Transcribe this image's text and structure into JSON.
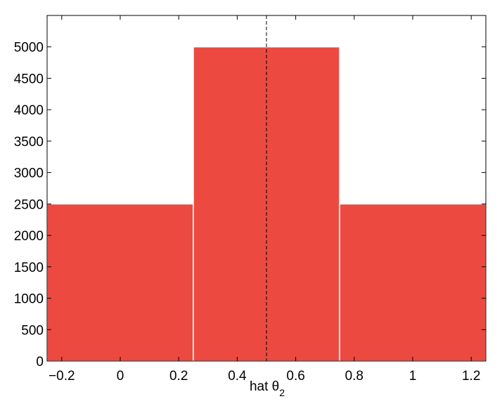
{
  "chart_data": {
    "type": "histogram",
    "bins": [
      -0.25,
      0.25,
      0.75,
      1.25
    ],
    "values": [
      2500,
      5000,
      2500
    ],
    "color": "#ec4a41",
    "xlim": [
      -0.25,
      1.25
    ],
    "ylim": [
      0,
      5500
    ],
    "xticks": [
      {
        "value": -0.2,
        "label": "−0.2"
      },
      0,
      0.2,
      0.4,
      0.6,
      0.8,
      1,
      1.2
    ],
    "yticks": [
      0,
      500,
      1000,
      1500,
      2000,
      2500,
      3000,
      3500,
      4000,
      4500,
      5000
    ],
    "xlabel": "hat θ",
    "xlabel_subscript": "2",
    "vline": 0.5
  }
}
